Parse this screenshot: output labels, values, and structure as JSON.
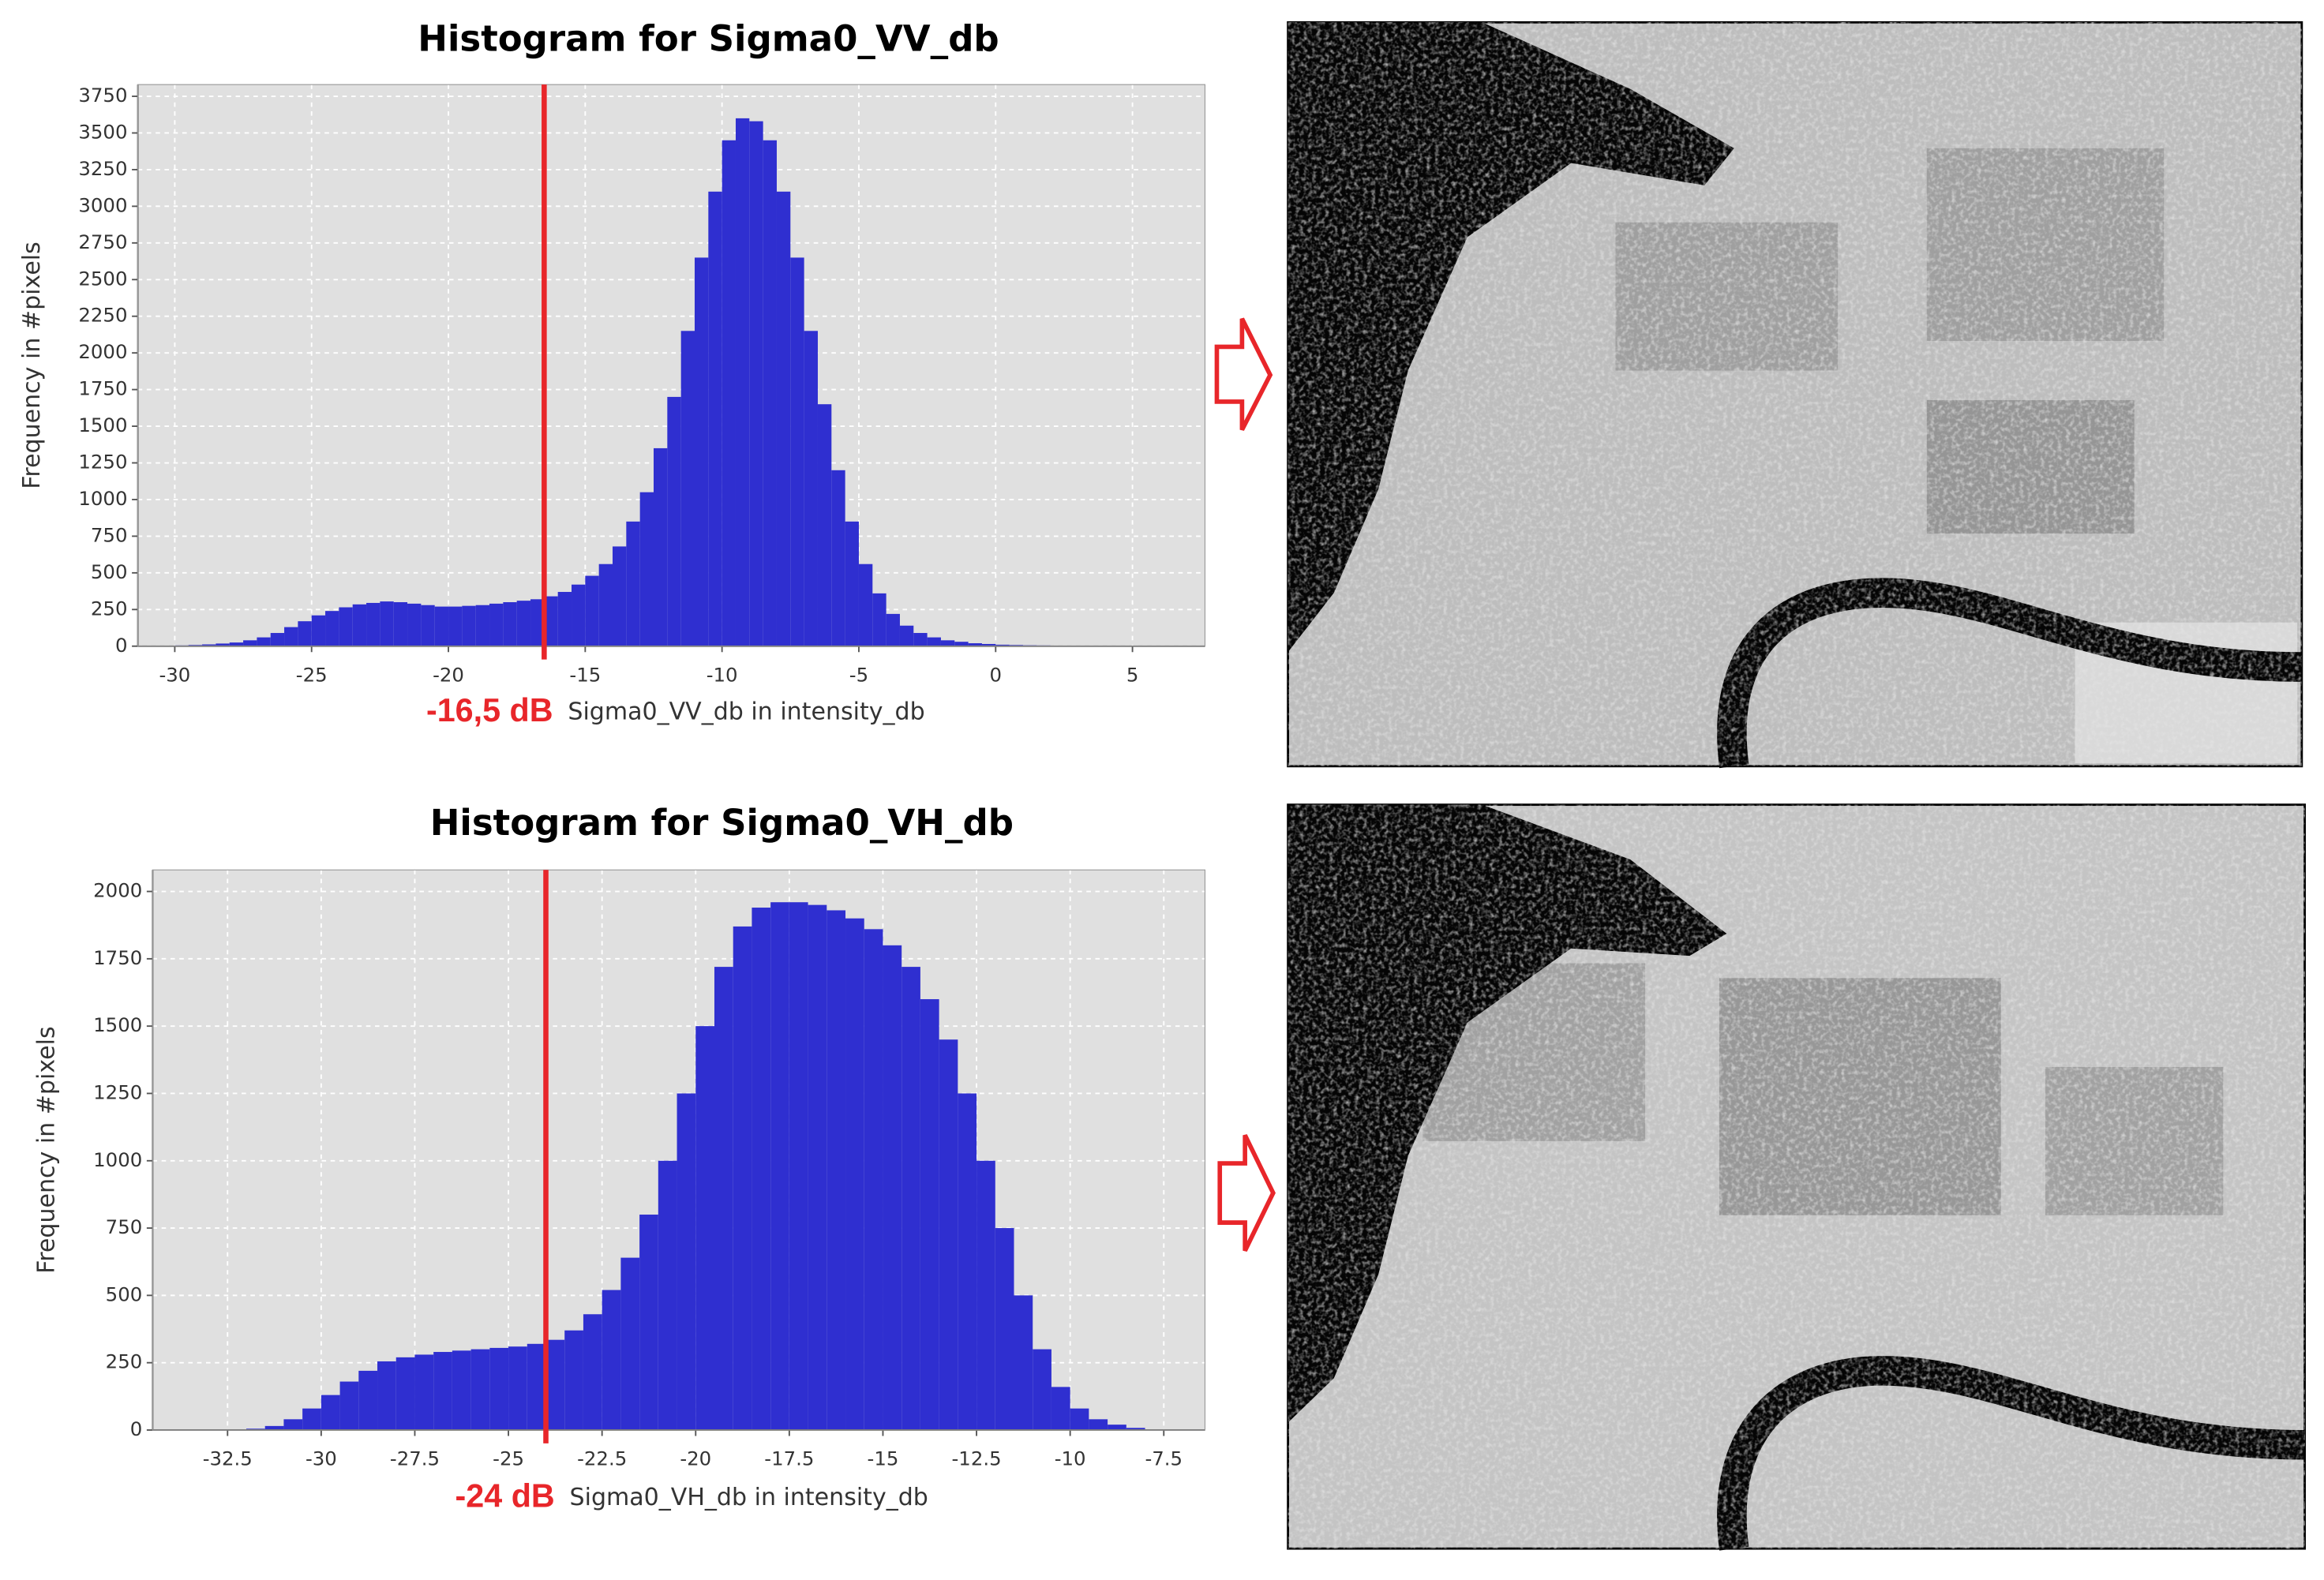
{
  "chart_data": [
    {
      "type": "histogram",
      "title": "Histogram for Sigma0_VV_db",
      "xlabel": "Sigma0_VV_db in intensity_db",
      "ylabel": "Frequency in #pixels",
      "bins": [
        -30,
        -29.5,
        -29,
        -28.5,
        -28,
        -27.5,
        -27,
        -26.5,
        -26,
        -25.5,
        -25,
        -24.5,
        -24,
        -23.5,
        -23,
        -22.5,
        -22,
        -21.5,
        -21,
        -20.5,
        -20,
        -19.5,
        -19,
        -18.5,
        -18,
        -17.5,
        -17,
        -16.5,
        -16,
        -15.5,
        -15,
        -14.5,
        -14,
        -13.5,
        -13,
        -12.5,
        -12,
        -11.5,
        -11,
        -10.5,
        -10,
        -9.5,
        -9,
        -8.5,
        -8,
        -7.5,
        -7,
        -6.5,
        -6,
        -5.5,
        -5,
        -4.5,
        -4,
        -3.5,
        -3,
        -2.5,
        -2,
        -1.5,
        -1,
        -0.5,
        0,
        0.5,
        1,
        1.5,
        2,
        2.5,
        3,
        3.5,
        4,
        4.5,
        5
      ],
      "values": [
        5,
        8,
        12,
        18,
        25,
        40,
        60,
        90,
        130,
        170,
        210,
        240,
        265,
        285,
        295,
        305,
        300,
        290,
        280,
        270,
        270,
        275,
        280,
        290,
        300,
        310,
        320,
        340,
        370,
        420,
        480,
        560,
        680,
        850,
        1050,
        1350,
        1700,
        2150,
        2650,
        3100,
        3450,
        3600,
        3580,
        3450,
        3100,
        2650,
        2150,
        1650,
        1200,
        850,
        560,
        360,
        220,
        140,
        90,
        60,
        40,
        30,
        20,
        15,
        10,
        8,
        6,
        5,
        4,
        3,
        2,
        2,
        1,
        1
      ],
      "color": "#2f2fd0",
      "xlim": [
        -31.35,
        7.65
      ],
      "ylim": [
        0,
        3830
      ],
      "xticks": [
        -30,
        -25,
        -20,
        -15,
        -10,
        -5,
        0,
        5
      ],
      "yticks": [
        0,
        250,
        500,
        750,
        1000,
        1250,
        1500,
        1750,
        2000,
        2250,
        2500,
        2750,
        3000,
        3250,
        3500,
        3750
      ],
      "grid": true,
      "threshold": {
        "value": -16.5,
        "label": "-16,5 dB"
      },
      "threshold_color": "#e8262a"
    },
    {
      "type": "histogram",
      "title": "Histogram for Sigma0_VH_db",
      "xlabel": "Sigma0_VH_db in intensity_db",
      "ylabel": "Frequency in #pixels",
      "bins": [
        -32,
        -31.5,
        -31,
        -30.5,
        -30,
        -29.5,
        -29,
        -28.5,
        -28,
        -27.5,
        -27,
        -26.5,
        -26,
        -25.5,
        -25,
        -24.5,
        -24,
        -23.5,
        -23,
        -22.5,
        -22,
        -21.5,
        -21,
        -20.5,
        -20,
        -19.5,
        -19,
        -18.5,
        -18,
        -17.5,
        -17,
        -16.5,
        -16,
        -15.5,
        -15,
        -14.5,
        -14,
        -13.5,
        -13,
        -12.5,
        -12,
        -11.5,
        -11,
        -10.5,
        -10,
        -9.5,
        -9,
        -8.5,
        -8
      ],
      "values": [
        5,
        15,
        40,
        80,
        130,
        180,
        220,
        255,
        270,
        280,
        290,
        295,
        300,
        305,
        310,
        320,
        335,
        370,
        430,
        520,
        640,
        800,
        1000,
        1250,
        1500,
        1720,
        1870,
        1940,
        1960,
        1960,
        1950,
        1930,
        1900,
        1860,
        1800,
        1720,
        1600,
        1450,
        1250,
        1000,
        750,
        500,
        300,
        160,
        80,
        40,
        20,
        8
      ],
      "color": "#2f2fd0",
      "xlim": [
        -34.5,
        -6.4
      ],
      "ylim": [
        0,
        2080
      ],
      "xticks": [
        -32.5,
        -30,
        -27.5,
        -25,
        -22.5,
        -20,
        -17.5,
        -15,
        -12.5,
        -10,
        -7.5
      ],
      "yticks": [
        0,
        250,
        500,
        750,
        1000,
        1250,
        1500,
        1750,
        2000
      ],
      "grid": true,
      "threshold": {
        "value": -24,
        "label": "-24 dB"
      },
      "threshold_color": "#e8262a"
    }
  ]
}
